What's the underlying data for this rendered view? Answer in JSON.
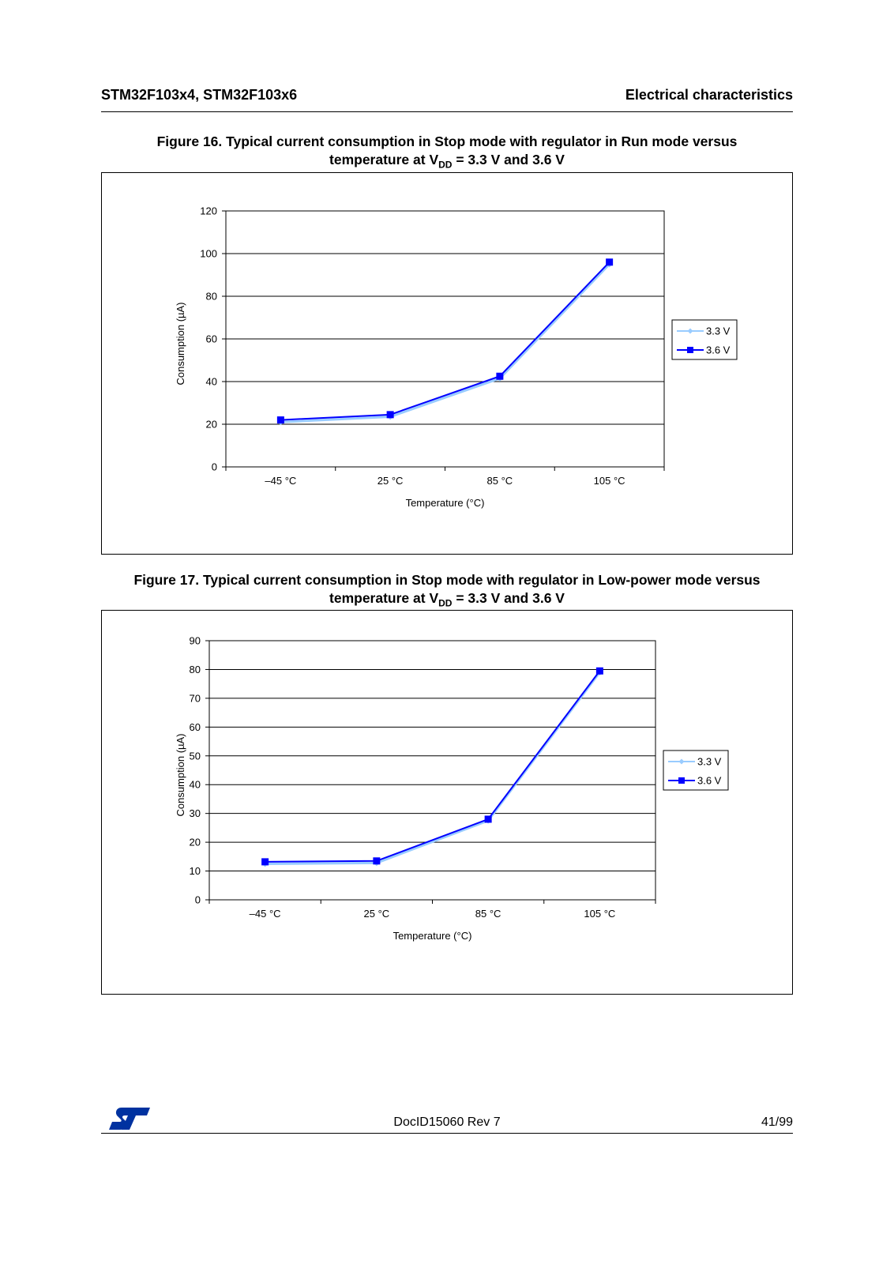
{
  "header": {
    "left": "STM32F103x4, STM32F103x6",
    "right": "Electrical characteristics"
  },
  "figures": [
    {
      "title_line1": "Figure 16. Typical current consumption in Stop mode with regulator in Run mode versus",
      "title_line2_pre": "temperature at V",
      "title_line2_sub": "DD",
      "title_line2_post": " = 3.3 V and 3.6 V"
    },
    {
      "title_line1": "Figure 17. Typical current consumption in Stop mode with regulator in Low-power mode versus",
      "title_line2_pre": "temperature at V",
      "title_line2_sub": "DD",
      "title_line2_post": " = 3.3 V and 3.6 V"
    }
  ],
  "chart_data": [
    {
      "type": "line",
      "categories": [
        "–45 °C",
        "25 °C",
        "85 °C",
        "105 °C"
      ],
      "series": [
        {
          "name": "3.3 V",
          "values": [
            21,
            23.5,
            41.5,
            95
          ],
          "color": "#99ccff"
        },
        {
          "name": "3.6 V",
          "values": [
            22,
            24.5,
            42.5,
            96
          ],
          "color": "#0000ff"
        }
      ],
      "xlabel": "Temperature (°C)",
      "ylabel": "Consumption (µA)",
      "ylim": [
        0,
        120
      ],
      "yticks": [
        0,
        20,
        40,
        60,
        80,
        100,
        120
      ],
      "grid": true,
      "legend": "right"
    },
    {
      "type": "line",
      "categories": [
        "–45 °C",
        "25 °C",
        "85 °C",
        "105 °C"
      ],
      "series": [
        {
          "name": "3.3 V",
          "values": [
            12.5,
            12.8,
            27.5,
            79
          ],
          "color": "#99ccff"
        },
        {
          "name": "3.6 V",
          "values": [
            13.2,
            13.5,
            28,
            79.5
          ],
          "color": "#0000ff"
        }
      ],
      "xlabel": "Temperature (°C)",
      "ylabel": "Consumption (µA)",
      "ylim": [
        0,
        90
      ],
      "yticks": [
        0,
        10,
        20,
        30,
        40,
        50,
        60,
        70,
        80,
        90
      ],
      "grid": true,
      "legend": "right"
    }
  ],
  "footer": {
    "doc": "DocID15060 Rev 7",
    "page": "41/99"
  },
  "logo": {
    "icon": "st-logo-icon",
    "color": "#0032a0"
  }
}
